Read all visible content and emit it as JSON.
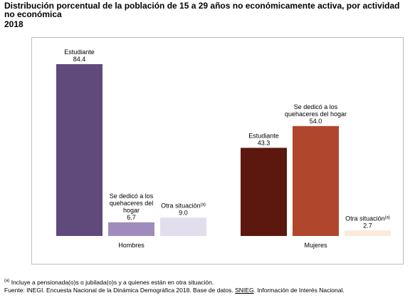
{
  "title": "Distribución porcentual de la población de 15 a 29 años no económicamente activa, por actividad no económica",
  "year": "2018",
  "chart_data": {
    "type": "bar",
    "categories": [
      "Hombres",
      "Mujeres"
    ],
    "ylim": [
      0,
      90
    ],
    "series": [
      {
        "name": "Estudiante",
        "values": [
          84.4,
          43.3
        ],
        "colors": [
          "#604a7b",
          "#5c170e"
        ]
      },
      {
        "name": "Se dedicó a los quehaceres del hogar",
        "values": [
          6.7,
          54.0
        ],
        "colors": [
          "#9f8bbd",
          "#b0472d"
        ]
      },
      {
        "name": "Otra situación",
        "values": [
          9.0,
          2.7
        ],
        "colors": [
          "#e2deee",
          "#fde9da"
        ]
      }
    ],
    "bar_labels": {
      "Hombres": [
        {
          "lines": [
            "Estudiante"
          ],
          "value": "84.4"
        },
        {
          "lines": [
            "Se dedicó a los",
            "quehaceres del",
            "hogar"
          ],
          "value": "6.7"
        },
        {
          "lines": [
            "Otra situación"
          ],
          "sup": "(a)",
          "value": "9.0"
        }
      ],
      "Mujeres": [
        {
          "lines": [
            "Estudiante"
          ],
          "value": "43.3"
        },
        {
          "lines": [
            "Se dedicó a los",
            "quehaceres del hogar"
          ],
          "value": "54.0"
        },
        {
          "lines": [
            "Otra situación"
          ],
          "sup": "(a)",
          "value": "2.7"
        }
      ]
    }
  },
  "footnote": {
    "mark": "(a)",
    "text": "Incluye a pensionada(o)s o jubilada(o)s y a quienes están en otra situación."
  },
  "source": {
    "prefix": "Fuente: INEGI. Encuesta Nacional de la Dinámica Demográfica 2018. Base de datos. ",
    "link": "SNIEG",
    "suffix": ". Información de Interés Nacional."
  }
}
